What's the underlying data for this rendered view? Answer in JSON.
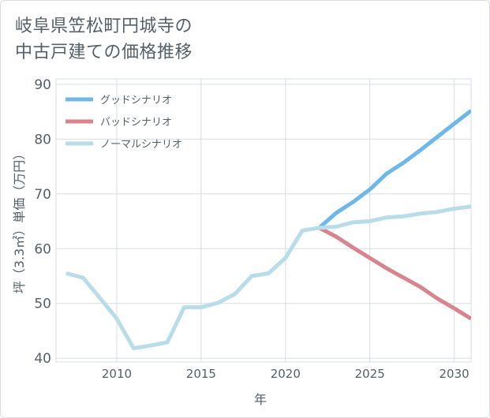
{
  "title": {
    "line1": "岐阜県笠松町円城寺の",
    "line2": "中古戸建ての価格推移"
  },
  "colors": {
    "good": "#6cb8ea",
    "bad": "#d9848d",
    "normal": "#b9dceb",
    "grid": "#d7dde4",
    "axis_text": "#55606b"
  },
  "chart_data": {
    "type": "line",
    "xlabel": "年",
    "ylabel": "坪（3.3㎡）単価（万円）",
    "xlim": [
      2006.4,
      2031
    ],
    "ylim": [
      39.3,
      91
    ],
    "x_ticks": [
      2010,
      2015,
      2020,
      2025,
      2030
    ],
    "y_ticks": [
      40,
      50,
      60,
      70,
      80,
      90
    ],
    "grid": true,
    "legend_position": "top-left",
    "series": [
      {
        "name": "グッドシナリオ",
        "color": "#6cb8ea",
        "x": [
          2022,
          2023,
          2024,
          2025,
          2026,
          2027,
          2028,
          2029,
          2030,
          2031
        ],
        "y": [
          63.8,
          66.5,
          68.5,
          70.8,
          73.7,
          75.7,
          78.0,
          80.4,
          82.8,
          85.2
        ]
      },
      {
        "name": "バッドシナリオ",
        "color": "#d9848d",
        "x": [
          2022,
          2023,
          2024,
          2025,
          2026,
          2027,
          2028,
          2029,
          2030,
          2031
        ],
        "y": [
          63.8,
          62.2,
          60.2,
          58.3,
          56.4,
          54.7,
          53.0,
          50.9,
          49.1,
          47.2
        ]
      },
      {
        "name": "ノーマルシナリオ",
        "color": "#b9dceb",
        "x": [
          2007,
          2008,
          2009,
          2010,
          2011,
          2012,
          2013,
          2014,
          2015,
          2016,
          2017,
          2018,
          2019,
          2020,
          2021,
          2022,
          2023,
          2024,
          2025,
          2026,
          2027,
          2028,
          2029,
          2030,
          2031
        ],
        "y": [
          55.5,
          54.7,
          51.0,
          47.2,
          41.8,
          42.3,
          42.9,
          49.3,
          49.3,
          50.1,
          51.7,
          55.0,
          55.5,
          58.3,
          63.3,
          63.8,
          64.0,
          64.8,
          65.0,
          65.7,
          65.9,
          66.4,
          66.7,
          67.3,
          67.7
        ]
      }
    ]
  }
}
